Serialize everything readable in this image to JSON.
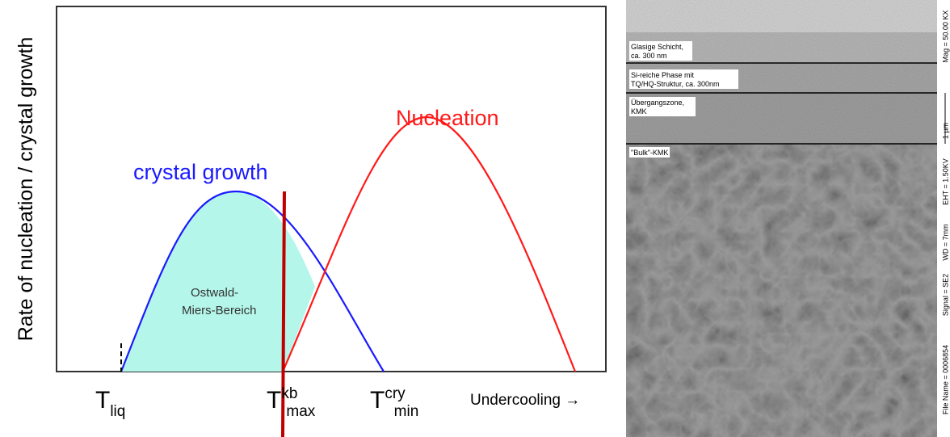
{
  "diagram": {
    "y_axis_label": "Rate of nucleation / crystal growth",
    "growth_label": "crystal growth",
    "nucleation_label": "Nucleation",
    "region_label": [
      "Ostwald-",
      "Miers-Bereich"
    ],
    "x_labels": [
      {
        "base": "T",
        "sub": "liq"
      },
      {
        "base": "T",
        "sup": "kb",
        "sub": "max"
      },
      {
        "base": "T",
        "sup": "cry",
        "sub": "min"
      }
    ],
    "x_axis_label": "Undercooling →"
  },
  "micrograph": {
    "layers": [
      [
        "Glasige Schicht,",
        "ca. 300 nm"
      ],
      [
        "Si-reiche Phase mit",
        "TQ/HQ-Struktur, ca. 300nm"
      ],
      [
        "Übergangszone,",
        "KMK"
      ],
      [
        "\"Bulk\"-KMK"
      ]
    ],
    "info": [
      "Mag = 50.00 KX",
      "1 µm",
      "EHT = 1.50KV",
      "WD = 7mm",
      "Signal = SE2",
      "File Name = 0006854"
    ]
  }
}
